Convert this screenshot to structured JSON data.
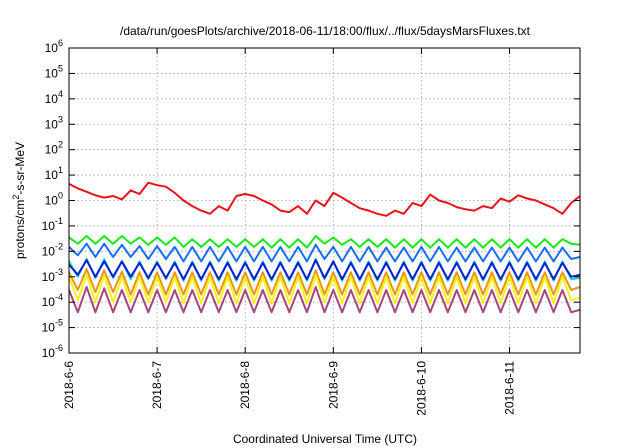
{
  "chart_data": {
    "type": "line",
    "title": "/data/run/goesPlots/archive/2018-06-11/18:00/flux/../flux/5daysMarsFluxes.txt",
    "xlabel": "Coordinated Universal Time (UTC)",
    "ylabel": {
      "base": "protons/cm",
      "sup": "2",
      "rest": "-s-sr-MeV"
    },
    "y_scale": "log",
    "ylim_exp": [
      -6,
      6
    ],
    "y_ticks": [
      {
        "base": "10",
        "exp": "-6"
      },
      {
        "base": "10",
        "exp": "-5"
      },
      {
        "base": "10",
        "exp": "-4"
      },
      {
        "base": "10",
        "exp": "-3"
      },
      {
        "base": "10",
        "exp": "-2"
      },
      {
        "base": "10",
        "exp": "-1"
      },
      {
        "base": "10",
        "exp": "0"
      },
      {
        "base": "10",
        "exp": "1"
      },
      {
        "base": "10",
        "exp": "2"
      },
      {
        "base": "10",
        "exp": "3"
      },
      {
        "base": "10",
        "exp": "4"
      },
      {
        "base": "10",
        "exp": "5"
      },
      {
        "base": "10",
        "exp": "6"
      }
    ],
    "x_ticks": [
      "2018-6-6",
      "2018-6-7",
      "2018-6-8",
      "2018-6-9",
      "2018-6-10",
      "2018-6-11"
    ],
    "xlim_days": [
      0,
      5.8
    ],
    "grid": true,
    "series": [
      {
        "color": "#e8141b",
        "x": [
          0.0,
          0.1,
          0.2,
          0.3,
          0.4,
          0.5,
          0.6,
          0.7,
          0.8,
          0.9,
          1.0,
          1.1,
          1.2,
          1.3,
          1.4,
          1.5,
          1.6,
          1.7,
          1.8,
          1.9,
          2.0,
          2.1,
          2.2,
          2.3,
          2.4,
          2.5,
          2.6,
          2.7,
          2.8,
          2.9,
          3.0,
          3.1,
          3.2,
          3.3,
          3.4,
          3.5,
          3.6,
          3.7,
          3.8,
          3.9,
          4.0,
          4.1,
          4.2,
          4.3,
          4.4,
          4.5,
          4.6,
          4.7,
          4.8,
          4.9,
          5.0,
          5.1,
          5.2,
          5.3,
          5.4,
          5.5,
          5.6,
          5.7,
          5.8
        ],
        "y": [
          4.5,
          3,
          2.2,
          1.6,
          1.3,
          1.5,
          1.1,
          2.5,
          1.8,
          5,
          4,
          3.5,
          2,
          1,
          0.6,
          0.4,
          0.3,
          0.6,
          0.4,
          1.5,
          1.8,
          1.5,
          1,
          0.7,
          0.4,
          0.35,
          0.6,
          0.3,
          1,
          0.6,
          2,
          1.3,
          0.8,
          0.5,
          0.4,
          0.3,
          0.25,
          0.4,
          0.3,
          0.8,
          0.6,
          1.7,
          1,
          0.8,
          0.55,
          0.45,
          0.4,
          0.6,
          0.5,
          1.2,
          0.9,
          1.6,
          1.2,
          1,
          0.7,
          0.5,
          0.3,
          0.8,
          1.5
        ]
      },
      {
        "color": "#19e819",
        "x": [
          0.0,
          0.1,
          0.2,
          0.3,
          0.4,
          0.5,
          0.6,
          0.7,
          0.8,
          0.9,
          1.0,
          1.1,
          1.2,
          1.3,
          1.4,
          1.5,
          1.6,
          1.7,
          1.8,
          1.9,
          2.0,
          2.1,
          2.2,
          2.3,
          2.4,
          2.5,
          2.6,
          2.7,
          2.8,
          2.9,
          3.0,
          3.1,
          3.2,
          3.3,
          3.4,
          3.5,
          3.6,
          3.7,
          3.8,
          3.9,
          4.0,
          4.1,
          4.2,
          4.3,
          4.4,
          4.5,
          4.6,
          4.7,
          4.8,
          4.9,
          5.0,
          5.1,
          5.2,
          5.3,
          5.4,
          5.5,
          5.6,
          5.7,
          5.8
        ],
        "y": [
          0.035,
          0.02,
          0.04,
          0.02,
          0.04,
          0.02,
          0.04,
          0.02,
          0.035,
          0.018,
          0.035,
          0.018,
          0.035,
          0.015,
          0.03,
          0.015,
          0.03,
          0.015,
          0.03,
          0.015,
          0.03,
          0.015,
          0.03,
          0.014,
          0.03,
          0.014,
          0.03,
          0.014,
          0.04,
          0.02,
          0.035,
          0.018,
          0.03,
          0.015,
          0.03,
          0.015,
          0.03,
          0.014,
          0.03,
          0.014,
          0.03,
          0.014,
          0.03,
          0.014,
          0.03,
          0.014,
          0.03,
          0.014,
          0.03,
          0.014,
          0.03,
          0.014,
          0.03,
          0.014,
          0.03,
          0.014,
          0.03,
          0.02,
          0.018
        ]
      },
      {
        "color": "#1a6ef0",
        "x": [
          0.0,
          0.1,
          0.2,
          0.3,
          0.4,
          0.5,
          0.6,
          0.7,
          0.8,
          0.9,
          1.0,
          1.1,
          1.2,
          1.3,
          1.4,
          1.5,
          1.6,
          1.7,
          1.8,
          1.9,
          2.0,
          2.1,
          2.2,
          2.3,
          2.4,
          2.5,
          2.6,
          2.7,
          2.8,
          2.9,
          3.0,
          3.1,
          3.2,
          3.3,
          3.4,
          3.5,
          3.6,
          3.7,
          3.8,
          3.9,
          4.0,
          4.1,
          4.2,
          4.3,
          4.4,
          4.5,
          4.6,
          4.7,
          4.8,
          4.9,
          5.0,
          5.1,
          5.2,
          5.3,
          5.4,
          5.5,
          5.6,
          5.7,
          5.8
        ],
        "y": [
          0.015,
          0.007,
          0.02,
          0.006,
          0.02,
          0.006,
          0.018,
          0.006,
          0.016,
          0.005,
          0.016,
          0.005,
          0.015,
          0.004,
          0.015,
          0.004,
          0.015,
          0.004,
          0.015,
          0.004,
          0.015,
          0.004,
          0.015,
          0.004,
          0.015,
          0.004,
          0.015,
          0.004,
          0.018,
          0.005,
          0.015,
          0.004,
          0.015,
          0.004,
          0.015,
          0.004,
          0.014,
          0.004,
          0.014,
          0.004,
          0.015,
          0.004,
          0.015,
          0.004,
          0.014,
          0.004,
          0.014,
          0.004,
          0.014,
          0.004,
          0.014,
          0.004,
          0.014,
          0.004,
          0.014,
          0.004,
          0.014,
          0.005,
          0.006
        ]
      },
      {
        "color": "#1bd1c7",
        "x": [
          0.0,
          0.1,
          0.2,
          0.3,
          0.4,
          0.5,
          0.6,
          0.7,
          0.8,
          0.9,
          1.0,
          1.1,
          1.2,
          1.3,
          1.4,
          1.5,
          1.6,
          1.7,
          1.8,
          1.9,
          2.0,
          2.1,
          2.2,
          2.3,
          2.4,
          2.5,
          2.6,
          2.7,
          2.8,
          2.9,
          3.0,
          3.1,
          3.2,
          3.3,
          3.4,
          3.5,
          3.6,
          3.7,
          3.8,
          3.9,
          4.0,
          4.1,
          4.2,
          4.3,
          4.4,
          4.5,
          4.6,
          4.7,
          4.8,
          4.9,
          5.0,
          5.1,
          5.2,
          5.3,
          5.4,
          5.5,
          5.6,
          5.7,
          5.8
        ],
        "y": [
          0.004,
          0.001,
          0.005,
          0.0009,
          0.005,
          0.0009,
          0.004,
          0.0008,
          0.004,
          0.0008,
          0.004,
          0.0008,
          0.004,
          0.0007,
          0.004,
          0.0007,
          0.004,
          0.0007,
          0.004,
          0.0007,
          0.004,
          0.0007,
          0.004,
          0.0007,
          0.004,
          0.0007,
          0.004,
          0.0007,
          0.005,
          0.0008,
          0.004,
          0.0007,
          0.004,
          0.0007,
          0.004,
          0.0007,
          0.004,
          0.0007,
          0.004,
          0.0007,
          0.004,
          0.0007,
          0.004,
          0.0007,
          0.004,
          0.0007,
          0.004,
          0.0007,
          0.004,
          0.0007,
          0.004,
          0.0007,
          0.004,
          0.0007,
          0.004,
          0.0007,
          0.004,
          0.0008,
          0.0009
        ]
      },
      {
        "color": "#0a1fd6",
        "x": [
          0.0,
          0.1,
          0.2,
          0.3,
          0.4,
          0.5,
          0.6,
          0.7,
          0.8,
          0.9,
          1.0,
          1.1,
          1.2,
          1.3,
          1.4,
          1.5,
          1.6,
          1.7,
          1.8,
          1.9,
          2.0,
          2.1,
          2.2,
          2.3,
          2.4,
          2.5,
          2.6,
          2.7,
          2.8,
          2.9,
          3.0,
          3.1,
          3.2,
          3.3,
          3.4,
          3.5,
          3.6,
          3.7,
          3.8,
          3.9,
          4.0,
          4.1,
          4.2,
          4.3,
          4.4,
          4.5,
          4.6,
          4.7,
          4.8,
          4.9,
          5.0,
          5.1,
          5.2,
          5.3,
          5.4,
          5.5,
          5.6,
          5.7,
          5.8
        ],
        "y": [
          0.003,
          0.0012,
          0.0045,
          0.001,
          0.004,
          0.001,
          0.004,
          0.001,
          0.0035,
          0.0009,
          0.0035,
          0.0009,
          0.0035,
          0.0008,
          0.0035,
          0.0008,
          0.0035,
          0.0008,
          0.0035,
          0.0008,
          0.0035,
          0.0008,
          0.0035,
          0.0008,
          0.0035,
          0.0008,
          0.0035,
          0.0008,
          0.0045,
          0.0009,
          0.004,
          0.0008,
          0.0035,
          0.0008,
          0.0035,
          0.0008,
          0.0035,
          0.0008,
          0.0035,
          0.0008,
          0.0035,
          0.0008,
          0.0035,
          0.0008,
          0.0035,
          0.0008,
          0.0035,
          0.0008,
          0.0035,
          0.0008,
          0.0035,
          0.0008,
          0.0035,
          0.0008,
          0.0035,
          0.0008,
          0.0035,
          0.001,
          0.0012
        ]
      },
      {
        "color": "#e8961a",
        "x": [
          0.0,
          0.1,
          0.2,
          0.3,
          0.4,
          0.5,
          0.6,
          0.7,
          0.8,
          0.9,
          1.0,
          1.1,
          1.2,
          1.3,
          1.4,
          1.5,
          1.6,
          1.7,
          1.8,
          1.9,
          2.0,
          2.1,
          2.2,
          2.3,
          2.4,
          2.5,
          2.6,
          2.7,
          2.8,
          2.9,
          3.0,
          3.1,
          3.2,
          3.3,
          3.4,
          3.5,
          3.6,
          3.7,
          3.8,
          3.9,
          4.0,
          4.1,
          4.2,
          4.3,
          4.4,
          4.5,
          4.6,
          4.7,
          4.8,
          4.9,
          5.0,
          5.1,
          5.2,
          5.3,
          5.4,
          5.5,
          5.6,
          5.7,
          5.8
        ],
        "y": [
          0.0015,
          0.0003,
          0.002,
          0.00025,
          0.0018,
          0.00025,
          0.0016,
          0.0002,
          0.0015,
          0.0002,
          0.0015,
          0.0002,
          0.0015,
          0.0002,
          0.0015,
          0.0002,
          0.0015,
          0.0002,
          0.0015,
          0.0002,
          0.0015,
          0.0002,
          0.0015,
          0.0002,
          0.0015,
          0.0002,
          0.0015,
          0.0002,
          0.0018,
          0.0002,
          0.0015,
          0.0002,
          0.0015,
          0.0002,
          0.0015,
          0.0002,
          0.0015,
          0.0002,
          0.0015,
          0.0002,
          0.0015,
          0.0002,
          0.0015,
          0.0002,
          0.0015,
          0.0002,
          0.0015,
          0.0002,
          0.0015,
          0.0002,
          0.0015,
          0.0002,
          0.0015,
          0.0002,
          0.0015,
          0.0002,
          0.0015,
          0.0003,
          0.0004
        ]
      },
      {
        "color": "#f4f21a",
        "x": [
          0.0,
          0.1,
          0.2,
          0.3,
          0.4,
          0.5,
          0.6,
          0.7,
          0.8,
          0.9,
          1.0,
          1.1,
          1.2,
          1.3,
          1.4,
          1.5,
          1.6,
          1.7,
          1.8,
          1.9,
          2.0,
          2.1,
          2.2,
          2.3,
          2.4,
          2.5,
          2.6,
          2.7,
          2.8,
          2.9,
          3.0,
          3.1,
          3.2,
          3.3,
          3.4,
          3.5,
          3.6,
          3.7,
          3.8,
          3.9,
          4.0,
          4.1,
          4.2,
          4.3,
          4.4,
          4.5,
          4.6,
          4.7,
          4.8,
          4.9,
          5.0,
          5.1,
          5.2,
          5.3,
          5.4,
          5.5,
          5.6,
          5.7,
          5.8
        ],
        "y": [
          0.001,
          0.00012,
          0.0012,
          0.0001,
          0.0011,
          0.0001,
          0.001,
          0.0001,
          0.001,
          0.0001,
          0.001,
          0.0001,
          0.001,
          9e-05,
          0.001,
          9e-05,
          0.001,
          9e-05,
          0.001,
          9e-05,
          0.001,
          9e-05,
          0.001,
          9e-05,
          0.001,
          9e-05,
          0.001,
          9e-05,
          0.0012,
          0.0001,
          0.001,
          9e-05,
          0.001,
          9e-05,
          0.001,
          9e-05,
          0.001,
          9e-05,
          0.001,
          9e-05,
          0.001,
          9e-05,
          0.001,
          9e-05,
          0.001,
          9e-05,
          0.001,
          9e-05,
          0.001,
          9e-05,
          0.001,
          9e-05,
          0.001,
          9e-05,
          0.001,
          9e-05,
          0.001,
          0.00012,
          0.00015
        ]
      },
      {
        "color": "#a8447e",
        "x": [
          0.0,
          0.1,
          0.2,
          0.3,
          0.4,
          0.5,
          0.6,
          0.7,
          0.8,
          0.9,
          1.0,
          1.1,
          1.2,
          1.3,
          1.4,
          1.5,
          1.6,
          1.7,
          1.8,
          1.9,
          2.0,
          2.1,
          2.2,
          2.3,
          2.4,
          2.5,
          2.6,
          2.7,
          2.8,
          2.9,
          3.0,
          3.1,
          3.2,
          3.3,
          3.4,
          3.5,
          3.6,
          3.7,
          3.8,
          3.9,
          4.0,
          4.1,
          4.2,
          4.3,
          4.4,
          4.5,
          4.6,
          4.7,
          4.8,
          4.9,
          5.0,
          5.1,
          5.2,
          5.3,
          5.4,
          5.5,
          5.6,
          5.7,
          5.8
        ],
        "y": [
          0.0003,
          4e-05,
          0.0004,
          4e-05,
          0.00035,
          4e-05,
          0.0003,
          4e-05,
          0.0003,
          4e-05,
          0.0003,
          4e-05,
          0.0003,
          4e-05,
          0.0003,
          4e-05,
          0.0003,
          4e-05,
          0.0003,
          4e-05,
          0.0003,
          4e-05,
          0.0003,
          4e-05,
          0.0003,
          4e-05,
          0.0003,
          4e-05,
          0.0004,
          4e-05,
          0.0003,
          4e-05,
          0.0003,
          4e-05,
          0.0003,
          4e-05,
          0.0003,
          4e-05,
          0.0003,
          4e-05,
          0.0003,
          4e-05,
          0.0003,
          4e-05,
          0.0003,
          4e-05,
          0.0003,
          4e-05,
          0.0003,
          4e-05,
          0.0003,
          4e-05,
          0.0003,
          4e-05,
          0.0003,
          4e-05,
          0.0003,
          4e-05,
          5e-05
        ]
      }
    ]
  }
}
